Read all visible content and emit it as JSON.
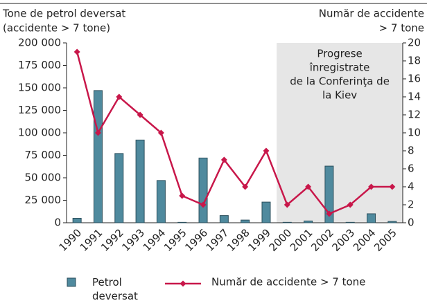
{
  "chart_data": {
    "type": "bar-line",
    "y_label": [
      "Tone de petrol deversat",
      "(accidente > 7 tone)"
    ],
    "y2_label": [
      "Număr de accidente",
      "> 7 tone"
    ],
    "categories": [
      "1990",
      "1991",
      "1992",
      "1993",
      "1994",
      "1995",
      "1996",
      "1997",
      "1998",
      "1999",
      "2000",
      "2001",
      "2002",
      "2003",
      "2004",
      "2005"
    ],
    "series": [
      {
        "name": "Petrol deversat",
        "type": "bar",
        "color": "#4f8a9e",
        "values": [
          5000,
          147000,
          77000,
          92000,
          47000,
          500,
          72000,
          8000,
          3000,
          23000,
          500,
          2000,
          63000,
          500,
          10000,
          1500
        ]
      },
      {
        "name": "Număr de accidente > 7 tone",
        "type": "line",
        "axis": "y2",
        "color": "#c8174a",
        "values": [
          19,
          10,
          14,
          12,
          10,
          3,
          2,
          7,
          4,
          8,
          2,
          4,
          1,
          2,
          4,
          4
        ]
      }
    ],
    "ylim": [
      0,
      200000
    ],
    "yticks": [
      0,
      {
        "value": 25000,
        "label": "25 000"
      },
      {
        "value": 50000,
        "label": "50 000"
      },
      {
        "value": 75000,
        "label": "75 000"
      },
      {
        "value": 100000,
        "label": "100 000"
      },
      {
        "value": 125000,
        "label": "125 000"
      },
      {
        "value": 150000,
        "label": "150 000"
      },
      {
        "value": 175000,
        "label": "175 000"
      },
      {
        "value": 200000,
        "label": "200 000"
      }
    ],
    "y2lim": [
      0,
      20
    ],
    "y2ticks": [
      0,
      2,
      4,
      6,
      8,
      10,
      12,
      14,
      16,
      18,
      20
    ],
    "highlight": {
      "from": "2000",
      "to": "2005",
      "color": "#e6e6e6",
      "label": [
        "Progrese",
        "înregistrate",
        "de la Conferinţa de",
        "la Kiev"
      ]
    }
  }
}
